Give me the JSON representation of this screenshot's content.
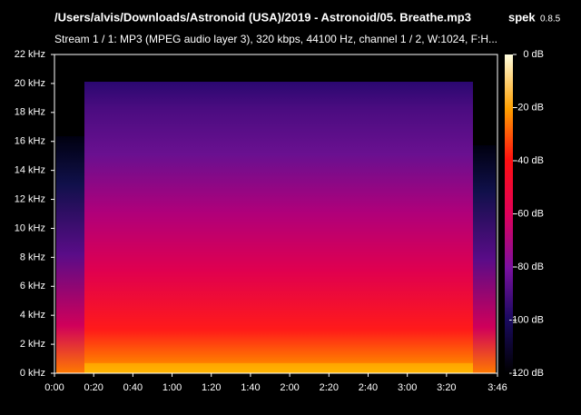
{
  "chart_data": {
    "type": "spectrogram",
    "title": "/Users/alvis/Downloads/Astronoid (USA)/2019 - Astronoid/05. Breathe.mp3",
    "app_name": "spek",
    "app_version": "0.8.5",
    "subtitle": "Stream 1 / 1: MP3 (MPEG audio layer 3), 320 kbps, 44100 Hz, channel 1 / 2, W:1024, F:H...",
    "xlim": [
      0,
      226
    ],
    "xticks": [
      {
        "value": 0,
        "label": "0:00"
      },
      {
        "value": 20,
        "label": "0:20"
      },
      {
        "value": 40,
        "label": "0:40"
      },
      {
        "value": 60,
        "label": "1:00"
      },
      {
        "value": 80,
        "label": "1:20"
      },
      {
        "value": 100,
        "label": "1:40"
      },
      {
        "value": 120,
        "label": "2:00"
      },
      {
        "value": 140,
        "label": "2:20"
      },
      {
        "value": 160,
        "label": "2:40"
      },
      {
        "value": 180,
        "label": "3:00"
      },
      {
        "value": 200,
        "label": "3:20"
      },
      {
        "value": 226,
        "label": "3:46"
      }
    ],
    "ylim": [
      0,
      22
    ],
    "yticks": [
      {
        "value": 0,
        "label": "0 kHz"
      },
      {
        "value": 2,
        "label": "2 kHz"
      },
      {
        "value": 4,
        "label": "4 kHz"
      },
      {
        "value": 6,
        "label": "6 kHz"
      },
      {
        "value": 8,
        "label": "8 kHz"
      },
      {
        "value": 10,
        "label": "10 kHz"
      },
      {
        "value": 12,
        "label": "12 kHz"
      },
      {
        "value": 14,
        "label": "14 kHz"
      },
      {
        "value": 16,
        "label": "16 kHz"
      },
      {
        "value": 18,
        "label": "18 kHz"
      },
      {
        "value": 20,
        "label": "20 kHz"
      },
      {
        "value": 22,
        "label": "22 kHz"
      }
    ],
    "clim": [
      -120,
      0
    ],
    "cticks": [
      {
        "value": 0,
        "label": "0 dB"
      },
      {
        "value": -20,
        "label": "-20 dB"
      },
      {
        "value": -40,
        "label": "-40 dB"
      },
      {
        "value": -60,
        "label": "-60 dB"
      },
      {
        "value": -80,
        "label": "-80 dB"
      },
      {
        "value": -100,
        "label": "-100 dB"
      },
      {
        "value": -120,
        "label": "-120 dB"
      }
    ]
  }
}
